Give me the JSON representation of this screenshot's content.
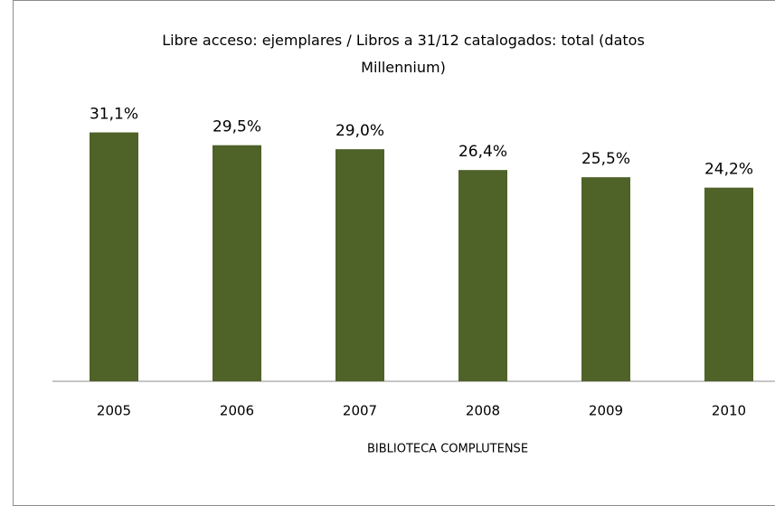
{
  "chart_data": {
    "type": "bar",
    "title": "Libre acceso: ejemplares / Libros a 31/12 catalogados: total (datos Millennium)",
    "x_label": "BIBLIOTECA COMPLUTENSE",
    "categories": [
      "2005",
      "2006",
      "2007",
      "2008",
      "2009",
      "2010"
    ],
    "values": [
      31.1,
      29.5,
      29.0,
      26.4,
      25.5,
      24.2
    ],
    "value_labels": [
      "31,1%",
      "29,5%",
      "29,0%",
      "26,4%",
      "25,5%",
      "24,2%"
    ],
    "color": "#4f6228",
    "ylim": [
      0,
      35
    ]
  }
}
